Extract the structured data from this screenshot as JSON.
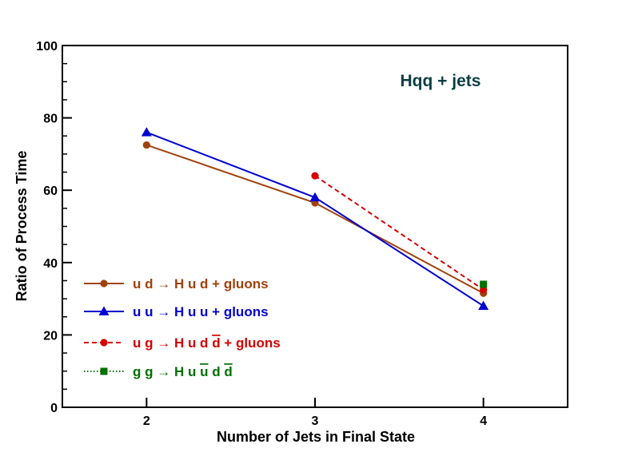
{
  "chart_data": {
    "type": "line",
    "title": "Hqq + jets",
    "xlabel": "Number of Jets in Final State",
    "ylabel": "Ratio of Process Time",
    "xlim": [
      1.5,
      4.5
    ],
    "ylim": [
      0,
      100
    ],
    "x_ticks": [
      "2",
      "3",
      "4"
    ],
    "y_ticks": [
      "0",
      "20",
      "40",
      "60",
      "80",
      "100"
    ],
    "series": [
      {
        "name": "u d → H u d + gluons",
        "color": "#a0410d",
        "line": "solid",
        "marker": "circle",
        "x": [
          2,
          3,
          4
        ],
        "y": [
          72.5,
          56.5,
          31.5
        ],
        "legend": {
          "initial": "u d",
          "final": "H u d",
          "suffix": "+ gluons"
        }
      },
      {
        "name": "u u → H u u + gluons",
        "color": "#0000d0",
        "line": "solid",
        "marker": "triangle",
        "x": [
          2,
          3,
          4
        ],
        "y": [
          76,
          58,
          28
        ],
        "legend": {
          "initial": "u u",
          "final": "H u u",
          "suffix": "+ gluons"
        }
      },
      {
        "name": "u g → H u d d̄ + gluons",
        "color": "#d40000",
        "line": "dashed",
        "marker": "circle",
        "x": [
          3,
          4
        ],
        "y": [
          64,
          32.5
        ],
        "legend": {
          "initial": "u g",
          "final": "H u d",
          "bar": "d",
          "suffix": "+ gluons"
        }
      },
      {
        "name": "g g → H u ū d d̄",
        "color": "#007000",
        "line": "dotted",
        "marker": "square",
        "x": [
          4
        ],
        "y": [
          34
        ],
        "legend": {
          "initial": "g g",
          "final": "H u",
          "bar": "u",
          "mid": "d",
          "bar2": "d",
          "suffix": ""
        }
      }
    ],
    "legend_position": "bottom-left",
    "arrow_symbol": "→",
    "grid": false
  }
}
